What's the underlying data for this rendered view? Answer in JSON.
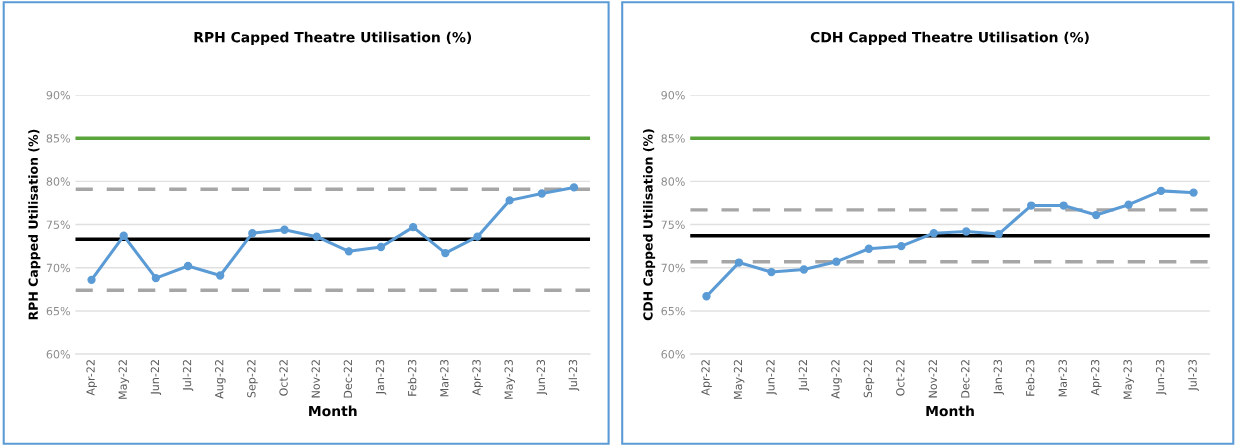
{
  "chart_data": [
    {
      "type": "line",
      "title": "RPH Capped Theatre Utilisation (%)",
      "xlabel": "Month",
      "ylabel": "RPH Capped Utilisation (%)",
      "categories": [
        "Apr-22",
        "May-22",
        "Jun-22",
        "Jul-22",
        "Aug-22",
        "Sep-22",
        "Oct-22",
        "Nov-22",
        "Dec-22",
        "Jan-23",
        "Feb-23",
        "Mar-23",
        "Apr-23",
        "May-23",
        "Jun-23",
        "Jul-23"
      ],
      "series": [
        {
          "color": "#5b9bd5",
          "values": [
            68.6,
            73.7,
            68.8,
            70.2,
            69.1,
            74.0,
            74.4,
            73.6,
            71.9,
            72.4,
            74.7,
            71.7,
            73.6,
            77.8,
            78.6,
            79.3
          ]
        }
      ],
      "ylim": [
        60,
        90
      ],
      "yticks": [
        {
          "value": 60,
          "label": "60%"
        },
        {
          "value": 65,
          "label": "65%"
        },
        {
          "value": 70,
          "label": "70%"
        },
        {
          "value": 75,
          "label": "75%"
        },
        {
          "value": 80,
          "label": "80%"
        },
        {
          "value": 85,
          "label": "85%"
        },
        {
          "value": 90,
          "label": "90%"
        }
      ],
      "ref_lines": [
        {
          "axis": "y",
          "value": 85,
          "color": "#5ba33b",
          "line_style": "solid"
        },
        {
          "axis": "y",
          "value": 79.1,
          "color": "#a6a6a6",
          "line_style": "dashed"
        },
        {
          "axis": "y",
          "value": 73.3,
          "color": "#000000",
          "line_style": "solid"
        },
        {
          "axis": "y",
          "value": 67.4,
          "color": "#a6a6a6",
          "line_style": "dashed"
        }
      ],
      "grid": "y",
      "legend": false,
      "marker": "circle",
      "line_style": "solid"
    },
    {
      "type": "line",
      "title": "CDH Capped Theatre Utilisation (%)",
      "xlabel": "Month",
      "ylabel": "CDH Capped Utilisation (%)",
      "categories": [
        "Apr-22",
        "May-22",
        "Jun-22",
        "Jul-22",
        "Aug-22",
        "Sep-22",
        "Oct-22",
        "Nov-22",
        "Dec-22",
        "Jan-23",
        "Feb-23",
        "Mar-23",
        "Apr-23",
        "May-23",
        "Jun-23",
        "Jul-23"
      ],
      "series": [
        {
          "color": "#5b9bd5",
          "values": [
            66.7,
            70.6,
            69.5,
            69.8,
            70.7,
            72.2,
            72.5,
            74.0,
            74.2,
            73.9,
            77.2,
            77.2,
            76.1,
            77.3,
            78.9,
            78.7
          ]
        }
      ],
      "ylim": [
        60,
        90
      ],
      "yticks": [
        {
          "value": 60,
          "label": "60%"
        },
        {
          "value": 65,
          "label": "65%"
        },
        {
          "value": 70,
          "label": "70%"
        },
        {
          "value": 75,
          "label": "75%"
        },
        {
          "value": 80,
          "label": "80%"
        },
        {
          "value": 85,
          "label": "85%"
        },
        {
          "value": 90,
          "label": "90%"
        }
      ],
      "ref_lines": [
        {
          "axis": "y",
          "value": 85,
          "color": "#5ba33b",
          "line_style": "solid"
        },
        {
          "axis": "y",
          "value": 76.7,
          "color": "#a6a6a6",
          "line_style": "dashed"
        },
        {
          "axis": "y",
          "value": 73.7,
          "color": "#000000",
          "line_style": "solid"
        },
        {
          "axis": "y",
          "value": 70.7,
          "color": "#a6a6a6",
          "line_style": "dashed"
        }
      ],
      "grid": "y",
      "legend": false,
      "marker": "circle",
      "line_style": "solid"
    }
  ]
}
